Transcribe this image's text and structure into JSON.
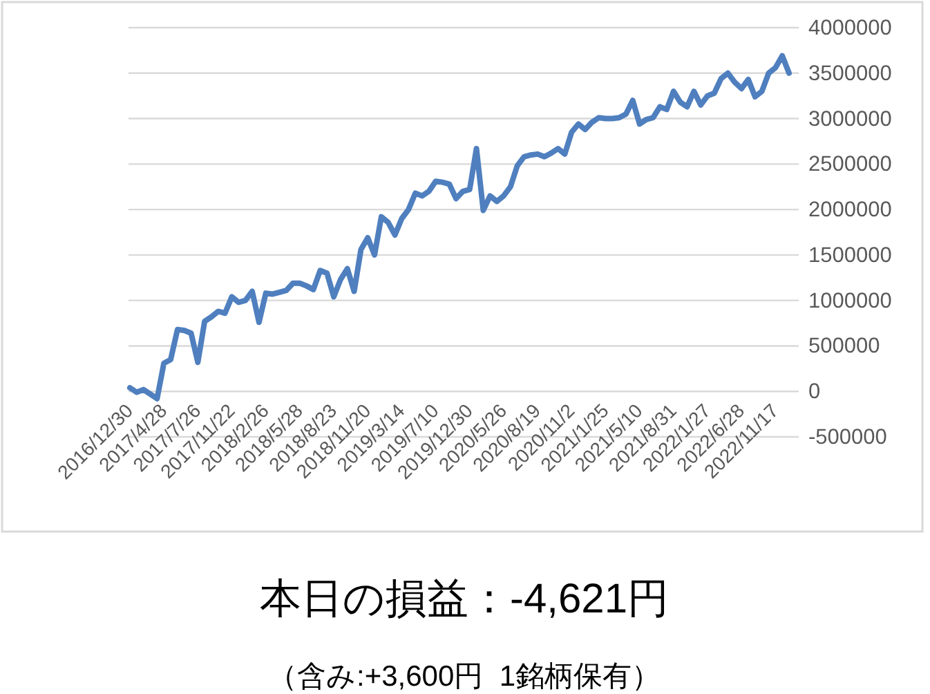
{
  "chart_data": {
    "type": "line",
    "ylim": [
      -500000,
      4000000
    ],
    "yticks": [
      -500000,
      0,
      500000,
      1000000,
      1500000,
      2000000,
      2500000,
      3000000,
      3500000,
      4000000
    ],
    "grid": "y",
    "marker": "none",
    "line_style": "solid",
    "categories": [
      "2016/12/30",
      null,
      null,
      null,
      null,
      "2017/4/28",
      null,
      null,
      null,
      null,
      "2017/7/26",
      null,
      null,
      null,
      null,
      "2017/11/22",
      null,
      null,
      null,
      null,
      "2018/2/26",
      null,
      null,
      null,
      null,
      "2018/5/28",
      null,
      null,
      null,
      null,
      "2018/8/23",
      null,
      null,
      null,
      null,
      "2018/11/20",
      null,
      null,
      null,
      null,
      "2019/3/14",
      null,
      null,
      null,
      null,
      "2019/7/10",
      null,
      null,
      null,
      null,
      "2019/12/30",
      null,
      null,
      null,
      null,
      "2020/5/26",
      null,
      null,
      null,
      null,
      "2020/8/19",
      null,
      null,
      null,
      null,
      "2020/11/2",
      null,
      null,
      null,
      null,
      "2021/1/25",
      null,
      null,
      null,
      null,
      "2021/5/10",
      null,
      null,
      null,
      null,
      "2021/8/31",
      null,
      null,
      null,
      null,
      "2022/1/27",
      null,
      null,
      null,
      null,
      "2022/6/28",
      null,
      null,
      null,
      null,
      "2022/11/17",
      null,
      null
    ],
    "series": [
      {
        "color": "#4f7fbe",
        "values": [
          40000,
          -10000,
          20000,
          -30000,
          -80000,
          310000,
          350000,
          680000,
          670000,
          640000,
          320000,
          770000,
          820000,
          880000,
          860000,
          1040000,
          980000,
          1000000,
          1100000,
          760000,
          1080000,
          1070000,
          1090000,
          1110000,
          1190000,
          1190000,
          1160000,
          1120000,
          1330000,
          1300000,
          1040000,
          1230000,
          1350000,
          1100000,
          1560000,
          1690000,
          1500000,
          1920000,
          1860000,
          1720000,
          1900000,
          2000000,
          2180000,
          2150000,
          2200000,
          2310000,
          2300000,
          2280000,
          2120000,
          2200000,
          2220000,
          2670000,
          1990000,
          2150000,
          2090000,
          2150000,
          2250000,
          2480000,
          2580000,
          2600000,
          2610000,
          2580000,
          2620000,
          2670000,
          2610000,
          2850000,
          2940000,
          2880000,
          2960000,
          3010000,
          3000000,
          3000000,
          3010000,
          3050000,
          3200000,
          2940000,
          2990000,
          3010000,
          3130000,
          3100000,
          3300000,
          3180000,
          3130000,
          3300000,
          3150000,
          3250000,
          3280000,
          3440000,
          3500000,
          3400000,
          3330000,
          3430000,
          3240000,
          3300000,
          3500000,
          3560000,
          3690000,
          3500000
        ]
      }
    ],
    "annotations": [
      "本日の損益：-4,621円",
      "（含み:+3,600円  1銘柄保有）"
    ]
  }
}
